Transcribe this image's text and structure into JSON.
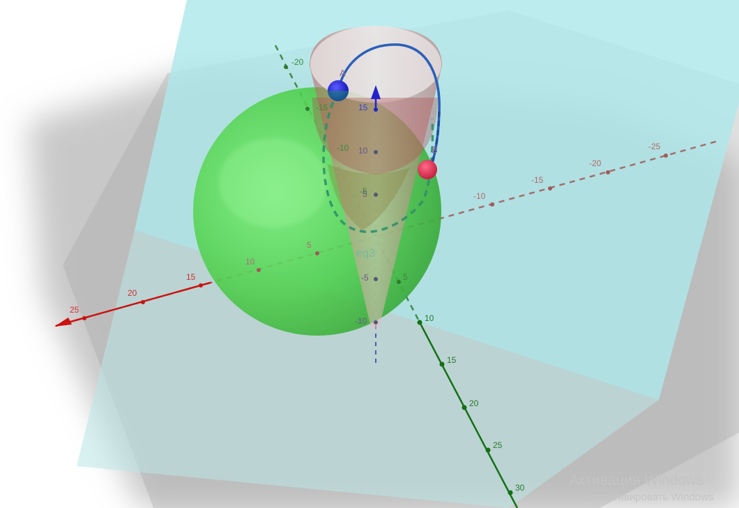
{
  "view": {
    "colors": {
      "background": "#ffffff",
      "floor_shadow": "#8f8f8f",
      "plane": "#aee8ea",
      "sphere": "#52d450",
      "cone": "#c98a8a",
      "x_axis": "#cc1111",
      "y_axis": "#147014",
      "z_axis": "#2222cc",
      "curve": "#2a60b8",
      "point_a": "#1a1ae6",
      "point_b": "#e0284a"
    },
    "axes": {
      "x_ticks": [
        {
          "label": "25"
        },
        {
          "label": "20"
        },
        {
          "label": "15"
        },
        {
          "label": "10"
        },
        {
          "label": "5"
        },
        {
          "label": "-10"
        },
        {
          "label": "-15"
        },
        {
          "label": "-20"
        },
        {
          "label": "-25"
        }
      ],
      "y_ticks": [
        {
          "label": "-20"
        },
        {
          "label": "-15"
        },
        {
          "label": "-10"
        },
        {
          "label": "-5"
        },
        {
          "label": "5"
        },
        {
          "label": "10"
        },
        {
          "label": "15"
        },
        {
          "label": "20"
        },
        {
          "label": "25"
        },
        {
          "label": "30"
        }
      ],
      "z_ticks": [
        {
          "label": "15"
        },
        {
          "label": "10"
        },
        {
          "label": "5"
        },
        {
          "label": "-5"
        },
        {
          "label": "-10"
        }
      ]
    },
    "objects": {
      "surface_label": "eq3",
      "point_a_label": "A",
      "point_b_label": "B"
    }
  },
  "watermark": {
    "title": "Активация Windows",
    "subtitle": "Чтобы активировать Windows"
  }
}
